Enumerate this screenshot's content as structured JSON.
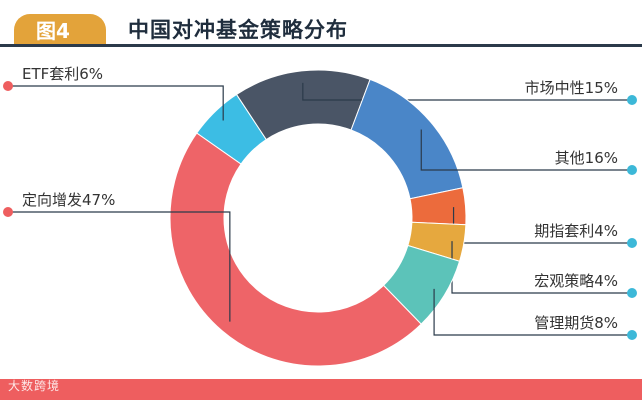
{
  "header": {
    "badge": "图4",
    "title": "中国对冲基金策略分布"
  },
  "watermark": "大数跨境",
  "colors": {
    "badge": "#e3a33a",
    "footer": "#ee5e5f",
    "leader_line": "#2b3a4a",
    "left_dot": "#ee5e5f",
    "right_dot": "#3cb8d8"
  },
  "chart_data": {
    "type": "pie",
    "donut": true,
    "title": "中国对冲基金策略分布",
    "unit": "%",
    "slices": [
      {
        "name": "ETF套利",
        "value": 6,
        "label": "ETF套利6%",
        "color": "#3cbde4",
        "side": "left"
      },
      {
        "name": "市场中性",
        "value": 15,
        "label": "市场中性15%",
        "color": "#4a5566",
        "side": "right"
      },
      {
        "name": "其他",
        "value": 16,
        "label": "其他16%",
        "color": "#4a86c8",
        "side": "right"
      },
      {
        "name": "期指套利",
        "value": 4,
        "label": "期指套利4%",
        "color": "#ec6b3c",
        "side": "right"
      },
      {
        "name": "宏观策略",
        "value": 4,
        "label": "宏观策略4%",
        "color": "#e6a83e",
        "side": "right"
      },
      {
        "name": "管理期货",
        "value": 8,
        "label": "管理期货8%",
        "color": "#5cc3b9",
        "side": "right"
      },
      {
        "name": "定向增发",
        "value": 47,
        "label": "定向增发47%",
        "color": "#ee6468",
        "side": "left"
      }
    ]
  }
}
